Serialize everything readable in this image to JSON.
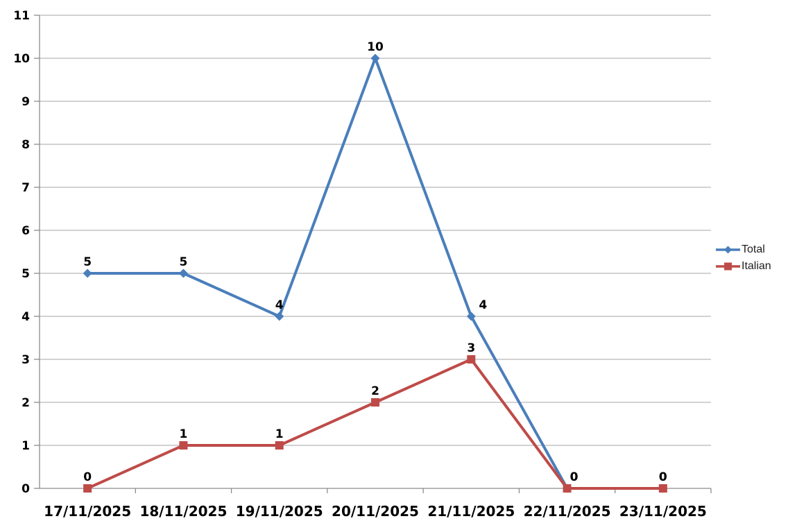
{
  "chart_data": {
    "type": "line",
    "title": "",
    "xlabel": "",
    "ylabel": "",
    "categories": [
      "17/11/2025",
      "18/11/2025",
      "19/11/2025",
      "20/11/2025",
      "21/11/2025",
      "22/11/2025",
      "23/11/2025"
    ],
    "series": [
      {
        "name": "Total",
        "color": "#4A7EBB",
        "marker": "diamond",
        "values": [
          5,
          5,
          4,
          10,
          4,
          0,
          0
        ]
      },
      {
        "name": "Italian",
        "color": "#BE4B48",
        "marker": "square",
        "values": [
          0,
          1,
          1,
          2,
          3,
          0,
          0
        ]
      }
    ],
    "ylim": [
      0,
      11
    ],
    "ytick_interval": 1,
    "grid": "horizontal",
    "legend_position": "right",
    "data_labels": true
  },
  "colors": {
    "gridline": "#A6A6A6",
    "axis": "#8C8C8C",
    "tick_label": "#000000",
    "data_label": "#000000",
    "legend_text": "#1f1f1f",
    "background": "#ffffff"
  }
}
